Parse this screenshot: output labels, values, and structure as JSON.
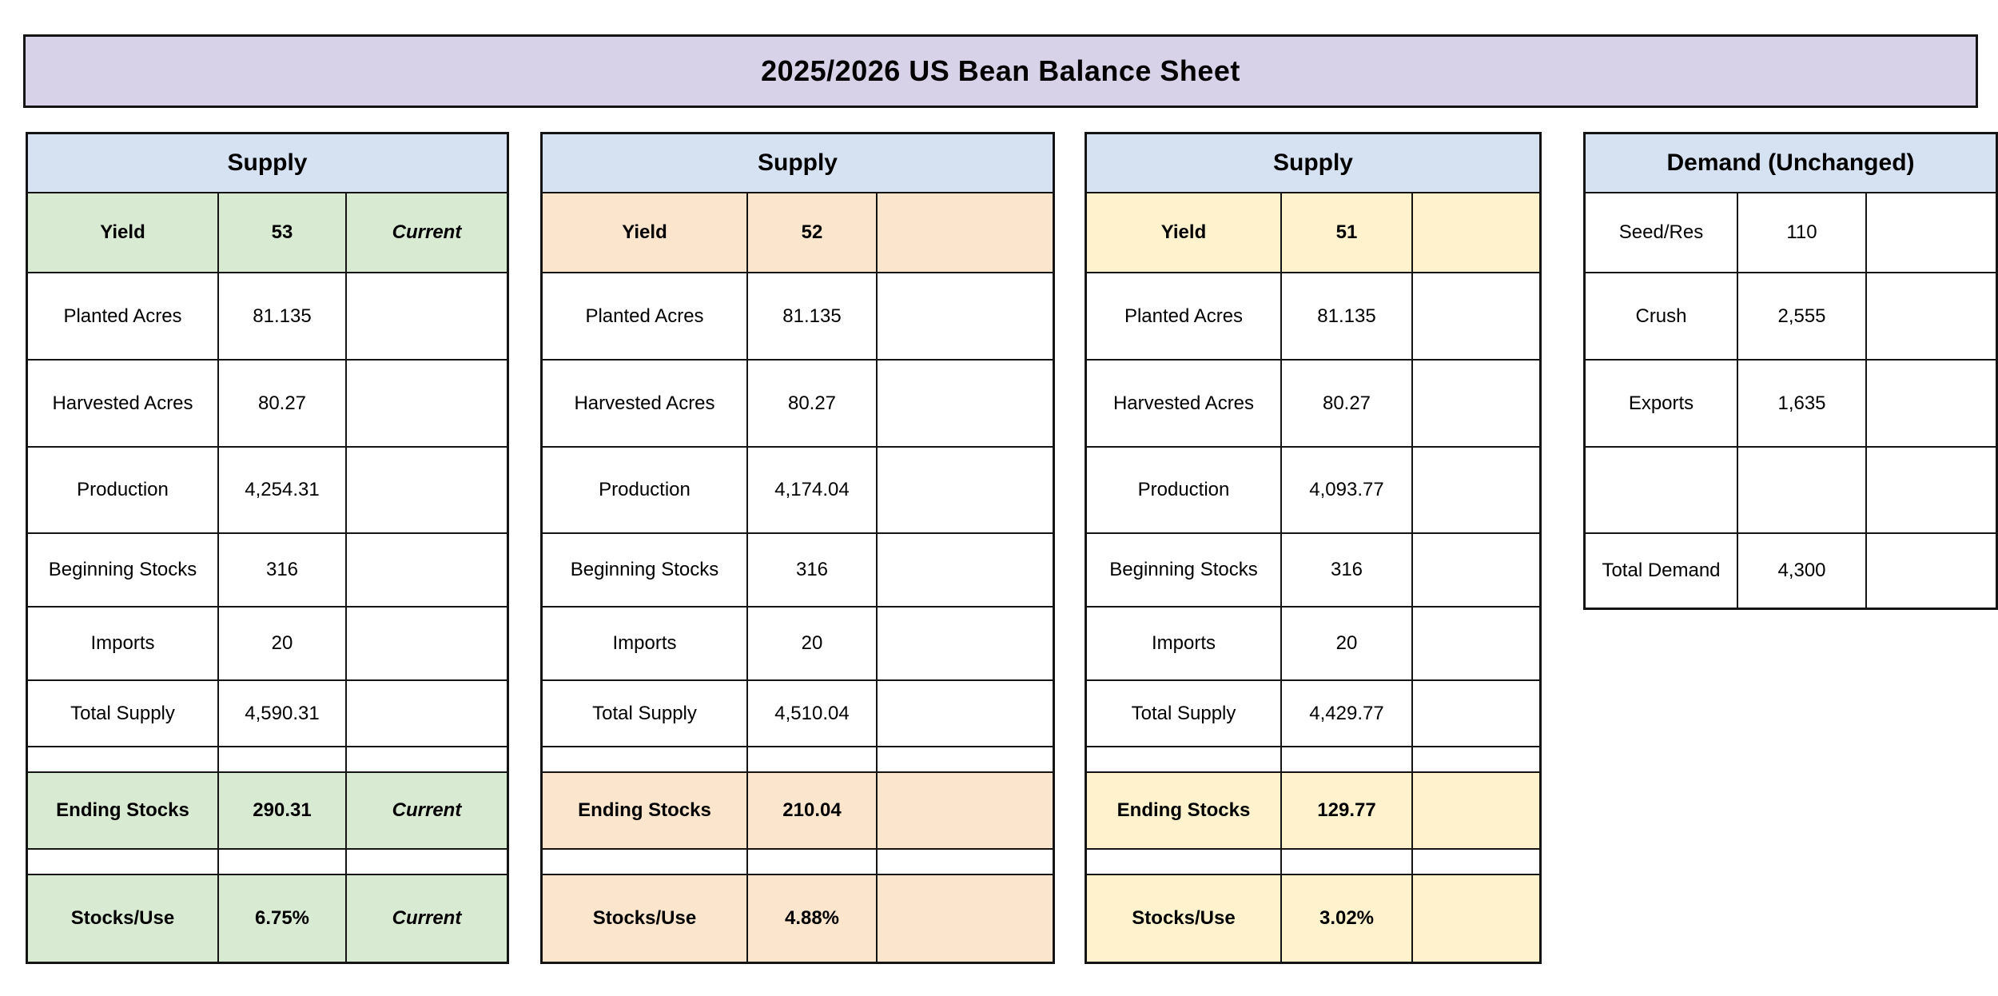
{
  "title": "2025/2026 US Bean Balance Sheet",
  "colors": {
    "title_bg": "#d8d2e8",
    "header_bg": "#d6e2f2",
    "green": "#d9ead3",
    "orange": "#fce5cd",
    "yellow": "#fff2cc",
    "border": "#141414"
  },
  "tables": [
    {
      "type": "supply",
      "header": "Supply",
      "accent_color_key": "green",
      "rows": [
        {
          "kind": "data",
          "accent": true,
          "label": "Yield",
          "value": "53",
          "note": "Current"
        },
        {
          "kind": "data",
          "accent": false,
          "label": "Planted Acres",
          "value": "81.135",
          "note": ""
        },
        {
          "kind": "data",
          "accent": false,
          "label": "Harvested Acres",
          "value": "80.27",
          "note": ""
        },
        {
          "kind": "data",
          "accent": false,
          "label": "Production",
          "value": "4,254.31",
          "note": ""
        },
        {
          "kind": "data",
          "accent": false,
          "label": "Beginning Stocks",
          "value": "316",
          "note": ""
        },
        {
          "kind": "data",
          "accent": false,
          "label": "Imports",
          "value": "20",
          "note": ""
        },
        {
          "kind": "data",
          "accent": false,
          "label": "Total Supply",
          "value": "4,590.31",
          "note": ""
        },
        {
          "kind": "spacer",
          "accent": false,
          "label": "",
          "value": "",
          "note": ""
        },
        {
          "kind": "data",
          "accent": true,
          "label": "Ending Stocks",
          "value": "290.31",
          "note": "Current"
        },
        {
          "kind": "spacer",
          "accent": false,
          "label": "",
          "value": "",
          "note": ""
        },
        {
          "kind": "data",
          "accent": true,
          "label": "Stocks/Use",
          "value": "6.75%",
          "note": "Current"
        }
      ]
    },
    {
      "type": "supply",
      "header": "Supply",
      "accent_color_key": "orange",
      "rows": [
        {
          "kind": "data",
          "accent": true,
          "label": "Yield",
          "value": "52",
          "note": ""
        },
        {
          "kind": "data",
          "accent": false,
          "label": "Planted Acres",
          "value": "81.135",
          "note": ""
        },
        {
          "kind": "data",
          "accent": false,
          "label": "Harvested Acres",
          "value": "80.27",
          "note": ""
        },
        {
          "kind": "data",
          "accent": false,
          "label": "Production",
          "value": "4,174.04",
          "note": ""
        },
        {
          "kind": "data",
          "accent": false,
          "label": "Beginning Stocks",
          "value": "316",
          "note": ""
        },
        {
          "kind": "data",
          "accent": false,
          "label": "Imports",
          "value": "20",
          "note": ""
        },
        {
          "kind": "data",
          "accent": false,
          "label": "Total Supply",
          "value": "4,510.04",
          "note": ""
        },
        {
          "kind": "spacer",
          "accent": false,
          "label": "",
          "value": "",
          "note": ""
        },
        {
          "kind": "data",
          "accent": true,
          "label": "Ending Stocks",
          "value": "210.04",
          "note": ""
        },
        {
          "kind": "spacer",
          "accent": false,
          "label": "",
          "value": "",
          "note": ""
        },
        {
          "kind": "data",
          "accent": true,
          "label": "Stocks/Use",
          "value": "4.88%",
          "note": ""
        }
      ]
    },
    {
      "type": "supply",
      "header": "Supply",
      "accent_color_key": "yellow",
      "rows": [
        {
          "kind": "data",
          "accent": true,
          "label": "Yield",
          "value": "51",
          "note": ""
        },
        {
          "kind": "data",
          "accent": false,
          "label": "Planted Acres",
          "value": "81.135",
          "note": ""
        },
        {
          "kind": "data",
          "accent": false,
          "label": "Harvested Acres",
          "value": "80.27",
          "note": ""
        },
        {
          "kind": "data",
          "accent": false,
          "label": "Production",
          "value": "4,093.77",
          "note": ""
        },
        {
          "kind": "data",
          "accent": false,
          "label": "Beginning Stocks",
          "value": "316",
          "note": ""
        },
        {
          "kind": "data",
          "accent": false,
          "label": "Imports",
          "value": "20",
          "note": ""
        },
        {
          "kind": "data",
          "accent": false,
          "label": "Total Supply",
          "value": "4,429.77",
          "note": ""
        },
        {
          "kind": "spacer",
          "accent": false,
          "label": "",
          "value": "",
          "note": ""
        },
        {
          "kind": "data",
          "accent": true,
          "label": "Ending Stocks",
          "value": "129.77",
          "note": ""
        },
        {
          "kind": "spacer",
          "accent": false,
          "label": "",
          "value": "",
          "note": ""
        },
        {
          "kind": "data",
          "accent": true,
          "label": "Stocks/Use",
          "value": "3.02%",
          "note": ""
        }
      ]
    },
    {
      "type": "demand",
      "header": "Demand (Unchanged)",
      "accent_color_key": "none",
      "rows": [
        {
          "kind": "data",
          "accent": false,
          "label": "Seed/Res",
          "value": "110",
          "note": ""
        },
        {
          "kind": "data",
          "accent": false,
          "label": "Crush",
          "value": "2,555",
          "note": ""
        },
        {
          "kind": "data",
          "accent": false,
          "label": "Exports",
          "value": "1,635",
          "note": ""
        },
        {
          "kind": "data",
          "accent": false,
          "label": "",
          "value": "",
          "note": ""
        },
        {
          "kind": "data",
          "accent": false,
          "label": "Total Demand",
          "value": "4,300",
          "note": ""
        }
      ]
    }
  ]
}
